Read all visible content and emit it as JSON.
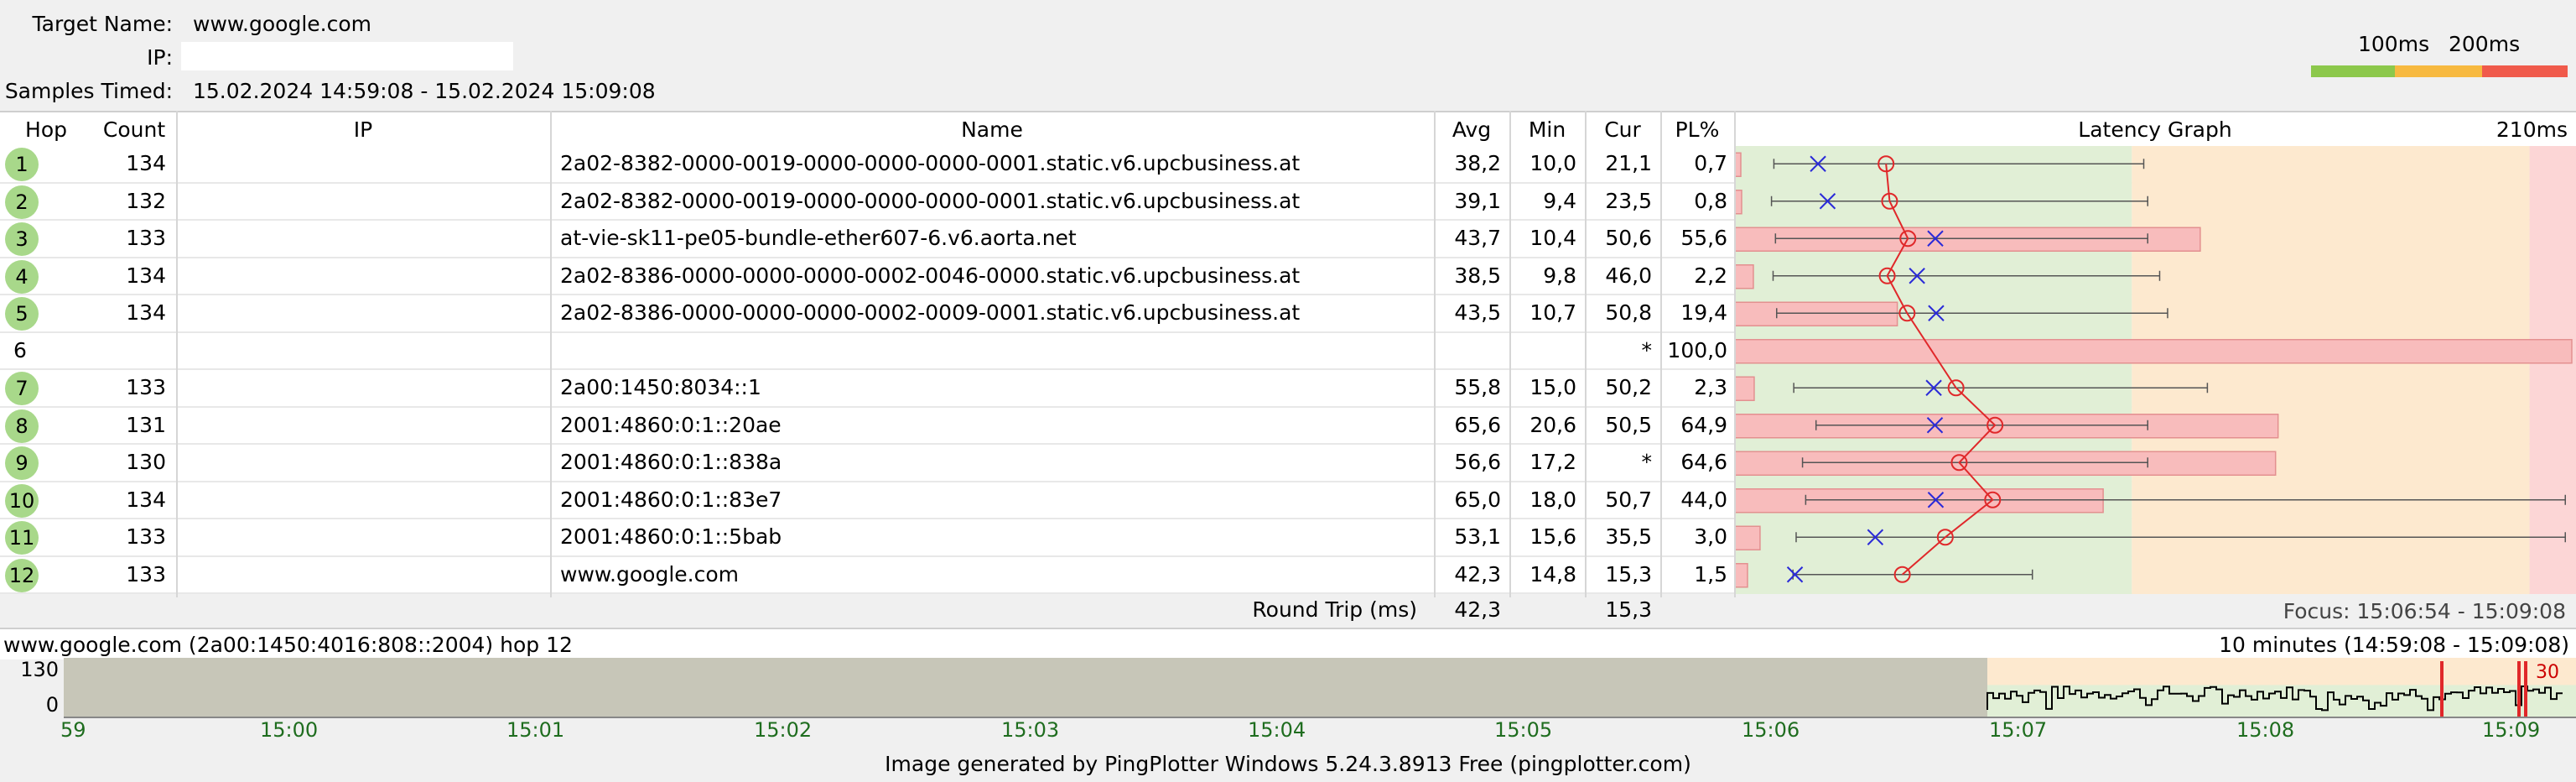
{
  "header": {
    "target_label": "Target Name:",
    "target_value": "www.google.com",
    "ip_label": "IP:",
    "ip_value": "",
    "samples_label": "Samples Timed:",
    "samples_value": "15.02.2024 14:59:08 - 15.02.2024 15:09:08"
  },
  "legend": {
    "label_100": "100ms",
    "label_200": "200ms",
    "colors": [
      "#8cc84b",
      "#f7b940",
      "#f05a4b"
    ]
  },
  "table": {
    "columns": [
      "Hop",
      "Count",
      "IP",
      "Name",
      "Avg",
      "Min",
      "Cur",
      "PL%",
      "Latency Graph"
    ],
    "graph_max_label": "210ms",
    "graph_scale_max_ms": 210,
    "rows": [
      {
        "hop": "1",
        "count": "134",
        "ip": "",
        "name": "2a02-8382-0000-0019-0000-0000-0000-0001.static.v6.upcbusiness.at",
        "avg": "38,2",
        "min": "10,0",
        "cur": "21,1",
        "pl": "0,7",
        "avg_ms": 38.2,
        "min_ms": 10.0,
        "max_ms": 103,
        "cur_ms": 21.1,
        "pl_pct": 0.7,
        "responded": true
      },
      {
        "hop": "2",
        "count": "132",
        "ip": "",
        "name": "2a02-8382-0000-0019-0000-0000-0000-0001.static.v6.upcbusiness.at",
        "avg": "39,1",
        "min": "9,4",
        "cur": "23,5",
        "pl": "0,8",
        "avg_ms": 39.1,
        "min_ms": 9.4,
        "max_ms": 104,
        "cur_ms": 23.5,
        "pl_pct": 0.8,
        "responded": true
      },
      {
        "hop": "3",
        "count": "133",
        "ip": "",
        "name": "at-vie-sk11-pe05-bundle-ether607-6.v6.aorta.net",
        "avg": "43,7",
        "min": "10,4",
        "cur": "50,6",
        "pl": "55,6",
        "avg_ms": 43.7,
        "min_ms": 10.4,
        "max_ms": 104,
        "cur_ms": 50.6,
        "pl_pct": 55.6,
        "responded": true
      },
      {
        "hop": "4",
        "count": "134",
        "ip": "",
        "name": "2a02-8386-0000-0000-0000-0002-0046-0000.static.v6.upcbusiness.at",
        "avg": "38,5",
        "min": "9,8",
        "cur": "46,0",
        "pl": "2,2",
        "avg_ms": 38.5,
        "min_ms": 9.8,
        "max_ms": 107,
        "cur_ms": 46.0,
        "pl_pct": 2.2,
        "responded": true
      },
      {
        "hop": "5",
        "count": "134",
        "ip": "",
        "name": "2a02-8386-0000-0000-0000-0002-0009-0001.static.v6.upcbusiness.at",
        "avg": "43,5",
        "min": "10,7",
        "cur": "50,8",
        "pl": "19,4",
        "avg_ms": 43.5,
        "min_ms": 10.7,
        "max_ms": 109,
        "cur_ms": 50.8,
        "pl_pct": 19.4,
        "responded": true
      },
      {
        "hop": "6",
        "count": "",
        "ip": "",
        "name": "",
        "avg": "",
        "min": "",
        "cur": "*",
        "pl": "100,0",
        "avg_ms": null,
        "min_ms": null,
        "max_ms": null,
        "cur_ms": null,
        "pl_pct": 100.0,
        "responded": false
      },
      {
        "hop": "7",
        "count": "133",
        "ip": "",
        "name": "2a00:1450:8034::1",
        "avg": "55,8",
        "min": "15,0",
        "cur": "50,2",
        "pl": "2,3",
        "avg_ms": 55.8,
        "min_ms": 15.0,
        "max_ms": 119,
        "cur_ms": 50.2,
        "pl_pct": 2.3,
        "responded": true
      },
      {
        "hop": "8",
        "count": "131",
        "ip": "",
        "name": "2001:4860:0:1::20ae",
        "avg": "65,6",
        "min": "20,6",
        "cur": "50,5",
        "pl": "64,9",
        "avg_ms": 65.6,
        "min_ms": 20.6,
        "max_ms": 104,
        "cur_ms": 50.5,
        "pl_pct": 64.9,
        "responded": true
      },
      {
        "hop": "9",
        "count": "130",
        "ip": "",
        "name": "2001:4860:0:1::838a",
        "avg": "56,6",
        "min": "17,2",
        "cur": "*",
        "pl": "64,6",
        "avg_ms": 56.6,
        "min_ms": 17.2,
        "max_ms": 104,
        "cur_ms": null,
        "pl_pct": 64.6,
        "responded": true
      },
      {
        "hop": "10",
        "count": "134",
        "ip": "",
        "name": "2001:4860:0:1::83e7",
        "avg": "65,0",
        "min": "18,0",
        "cur": "50,7",
        "pl": "44,0",
        "avg_ms": 65.0,
        "min_ms": 18.0,
        "max_ms": 209,
        "cur_ms": 50.7,
        "pl_pct": 44.0,
        "responded": true
      },
      {
        "hop": "11",
        "count": "133",
        "ip": "",
        "name": "2001:4860:0:1::5bab",
        "avg": "53,1",
        "min": "15,6",
        "cur": "35,5",
        "pl": "3,0",
        "avg_ms": 53.1,
        "min_ms": 15.6,
        "max_ms": 209,
        "cur_ms": 35.5,
        "pl_pct": 3.0,
        "responded": true
      },
      {
        "hop": "12",
        "count": "133",
        "ip": "",
        "name": "www.google.com",
        "avg": "42,3",
        "min": "14,8",
        "cur": "15,3",
        "pl": "1,5",
        "avg_ms": 42.3,
        "min_ms": 14.8,
        "max_ms": 75,
        "cur_ms": 15.3,
        "pl_pct": 1.5,
        "responded": true
      }
    ],
    "round_trip_label": "Round Trip (ms)",
    "round_trip_avg": "42,3",
    "round_trip_cur": "15,3",
    "focus_label": "Focus: 15:06:54 - 15:09:08"
  },
  "timeline": {
    "target_info": "www.google.com (2a00:1450:4016:808::2004) hop 12",
    "range_label": "10 minutes (14:59:08 - 15:09:08)",
    "y_max": "130",
    "y_min": "0",
    "y_max_value": 130,
    "marker_value": "30",
    "x_ticks": [
      "59",
      "15:00",
      "15:01",
      "15:02",
      "15:03",
      "15:04",
      "15:05",
      "15:06",
      "15:07",
      "15:08",
      "15:09"
    ]
  },
  "footer": {
    "text": "Image generated by PingPlotter Windows 5.24.3.8913 Free (pingplotter.com)"
  }
}
